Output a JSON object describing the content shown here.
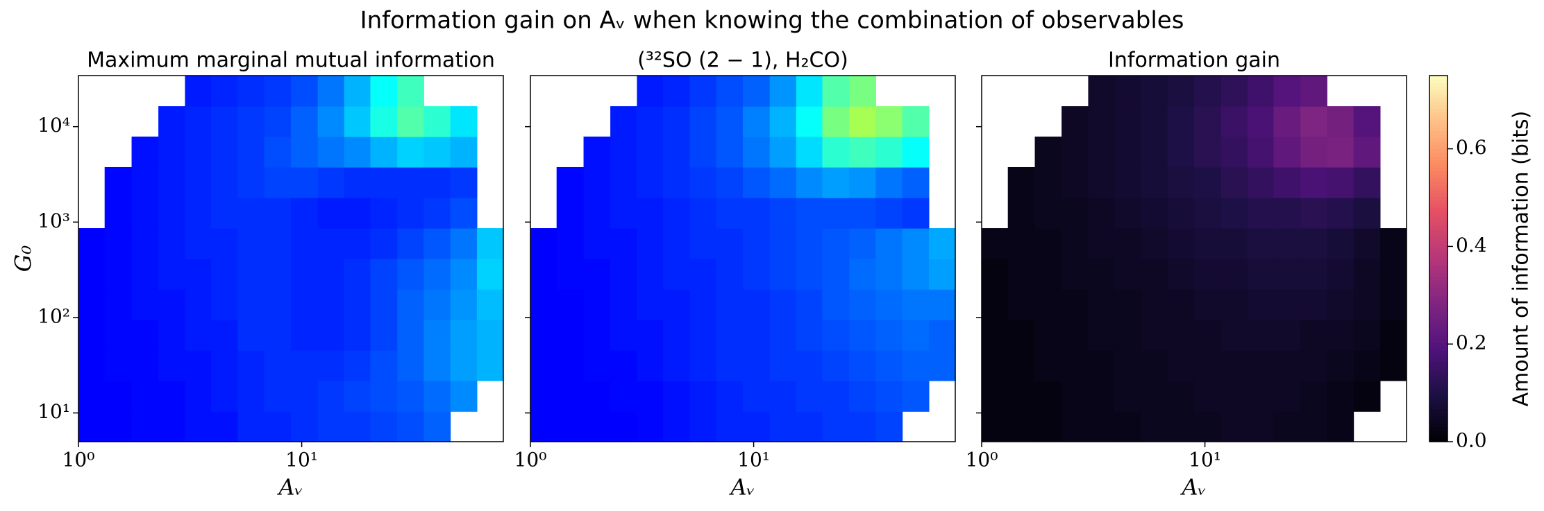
{
  "title": "Information gain on Aᵥ when knowing the combination of observables",
  "chart_data": [
    {
      "type": "heatmap",
      "title": "Maximum marginal mutual information",
      "xlabel": "Aᵥ",
      "ylabel": "G₀",
      "xscale": "log",
      "yscale": "log",
      "xlim": [
        1,
        80
      ],
      "ylim": [
        5,
        34300
      ],
      "xticks": [
        {
          "value": 1,
          "label": "10⁰"
        },
        {
          "value": 10,
          "label": "10¹"
        }
      ],
      "yticks": [
        {
          "value": 10,
          "label": "10¹"
        },
        {
          "value": 100,
          "label": "10²"
        },
        {
          "value": 1000,
          "label": "10³"
        },
        {
          "value": 10000,
          "label": "10⁴"
        }
      ],
      "show_ytick_labels": true,
      "colormap": "jet",
      "clim": [
        0,
        1
      ],
      "xbins": [
        1,
        1.31,
        1.73,
        2.28,
        3.0,
        3.93,
        5.17,
        6.8,
        8.94,
        11.8,
        15.5,
        20.3,
        26.8,
        35.2,
        46.3,
        60.9,
        80
      ],
      "ybins": [
        5,
        10.4,
        21.8,
        45.5,
        95,
        198,
        414,
        864,
        1800,
        3770,
        7870,
        16400,
        34300
      ],
      "z": [
        [
          0.12,
          0.12,
          0.13,
          0.13,
          0.14,
          0.14,
          0.16,
          0.16,
          0.17,
          0.18,
          0.18,
          0.19,
          0.2,
          0.22,
          null,
          null
        ],
        [
          0.12,
          0.12,
          0.13,
          0.13,
          0.14,
          0.15,
          0.16,
          0.17,
          0.17,
          0.18,
          0.19,
          0.2,
          0.21,
          0.23,
          0.26,
          null
        ],
        [
          0.12,
          0.13,
          0.13,
          0.14,
          0.14,
          0.15,
          0.16,
          0.17,
          0.17,
          0.17,
          0.18,
          0.2,
          0.22,
          0.25,
          0.28,
          0.3
        ],
        [
          0.12,
          0.13,
          0.13,
          0.14,
          0.15,
          0.15,
          0.17,
          0.17,
          0.16,
          0.16,
          0.17,
          0.19,
          0.22,
          0.25,
          0.28,
          0.3
        ],
        [
          0.12,
          0.13,
          0.14,
          0.14,
          0.15,
          0.16,
          0.17,
          0.17,
          0.16,
          0.16,
          0.17,
          0.19,
          0.22,
          0.24,
          0.27,
          0.31
        ],
        [
          0.12,
          0.13,
          0.14,
          0.15,
          0.15,
          0.16,
          0.17,
          0.17,
          0.16,
          0.16,
          0.17,
          0.19,
          0.21,
          0.23,
          0.26,
          0.33
        ],
        [
          0.12,
          0.13,
          0.14,
          0.15,
          0.16,
          0.16,
          0.17,
          0.17,
          0.16,
          0.16,
          0.16,
          0.17,
          0.19,
          0.21,
          0.24,
          0.32
        ],
        [
          null,
          0.13,
          0.14,
          0.15,
          0.16,
          0.17,
          0.17,
          0.17,
          0.16,
          0.15,
          0.15,
          0.16,
          0.17,
          0.18,
          0.2,
          null
        ],
        [
          null,
          0.13,
          0.14,
          0.15,
          0.16,
          0.17,
          0.18,
          0.19,
          0.19,
          0.18,
          0.17,
          0.17,
          0.17,
          0.17,
          0.18,
          null
        ],
        [
          null,
          null,
          0.14,
          0.15,
          0.16,
          0.17,
          0.18,
          0.2,
          0.22,
          0.24,
          0.26,
          0.3,
          0.33,
          0.32,
          0.3,
          null
        ],
        [
          null,
          null,
          null,
          0.15,
          0.16,
          0.17,
          0.18,
          0.19,
          0.22,
          0.26,
          0.32,
          0.4,
          0.46,
          0.42,
          0.35,
          null
        ],
        [
          null,
          null,
          null,
          null,
          0.15,
          0.16,
          0.17,
          0.18,
          0.2,
          0.24,
          0.3,
          0.38,
          0.44,
          null,
          null,
          null
        ]
      ]
    },
    {
      "type": "heatmap",
      "title": "(³²SO (2 − 1), H₂CO)",
      "xlabel": "Aᵥ",
      "xscale": "log",
      "yscale": "log",
      "xlim": [
        1,
        80
      ],
      "ylim": [
        5,
        34300
      ],
      "xticks": [
        {
          "value": 1,
          "label": "10⁰"
        },
        {
          "value": 10,
          "label": "10¹"
        }
      ],
      "yticks": [
        10,
        100,
        1000,
        10000
      ],
      "show_ytick_labels": false,
      "colormap": "jet",
      "clim": [
        0,
        1
      ],
      "xbins": [
        1,
        1.31,
        1.73,
        2.28,
        3.0,
        3.93,
        5.17,
        6.8,
        8.94,
        11.8,
        15.5,
        20.3,
        26.8,
        35.2,
        46.3,
        60.9,
        80
      ],
      "ybins": [
        5,
        10.4,
        21.8,
        45.5,
        95,
        198,
        414,
        864,
        1800,
        3770,
        7870,
        16400,
        34300
      ],
      "z": [
        [
          0.11,
          0.11,
          0.12,
          0.12,
          0.13,
          0.14,
          0.15,
          0.16,
          0.16,
          0.17,
          0.17,
          0.18,
          0.18,
          0.19,
          null,
          null
        ],
        [
          0.11,
          0.12,
          0.12,
          0.13,
          0.13,
          0.14,
          0.15,
          0.16,
          0.17,
          0.17,
          0.18,
          0.18,
          0.19,
          0.2,
          0.21,
          null
        ],
        [
          0.11,
          0.12,
          0.13,
          0.13,
          0.14,
          0.15,
          0.16,
          0.17,
          0.17,
          0.18,
          0.18,
          0.19,
          0.2,
          0.21,
          0.22,
          0.22
        ],
        [
          0.12,
          0.12,
          0.13,
          0.14,
          0.14,
          0.15,
          0.16,
          0.17,
          0.17,
          0.18,
          0.19,
          0.2,
          0.21,
          0.22,
          0.23,
          0.22
        ],
        [
          0.12,
          0.12,
          0.13,
          0.14,
          0.15,
          0.15,
          0.16,
          0.17,
          0.17,
          0.18,
          0.19,
          0.21,
          0.22,
          0.23,
          0.24,
          0.24
        ],
        [
          0.12,
          0.13,
          0.13,
          0.14,
          0.15,
          0.16,
          0.16,
          0.17,
          0.18,
          0.19,
          0.2,
          0.21,
          0.23,
          0.24,
          0.26,
          0.28
        ],
        [
          0.12,
          0.13,
          0.14,
          0.14,
          0.15,
          0.16,
          0.17,
          0.17,
          0.18,
          0.19,
          0.2,
          0.21,
          0.22,
          0.24,
          0.26,
          0.29
        ],
        [
          null,
          0.13,
          0.14,
          0.15,
          0.15,
          0.16,
          0.17,
          0.18,
          0.18,
          0.19,
          0.2,
          0.2,
          0.2,
          0.19,
          0.18,
          null
        ],
        [
          null,
          0.13,
          0.14,
          0.15,
          0.16,
          0.17,
          0.18,
          0.19,
          0.21,
          0.23,
          0.26,
          0.28,
          0.27,
          0.24,
          0.22,
          null
        ],
        [
          null,
          null,
          0.14,
          0.15,
          0.16,
          0.17,
          0.19,
          0.21,
          0.24,
          0.28,
          0.34,
          0.42,
          0.44,
          0.42,
          0.38,
          null
        ],
        [
          null,
          null,
          null,
          0.15,
          0.16,
          0.17,
          0.19,
          0.21,
          0.25,
          0.3,
          0.38,
          0.5,
          0.55,
          0.52,
          0.46,
          null
        ],
        [
          null,
          null,
          null,
          null,
          0.15,
          0.16,
          0.18,
          0.2,
          0.22,
          0.27,
          0.35,
          0.46,
          0.5,
          null,
          null,
          null
        ]
      ]
    },
    {
      "type": "heatmap",
      "title": "Information gain",
      "xlabel": "Aᵥ",
      "xscale": "log",
      "yscale": "log",
      "xlim": [
        1,
        80
      ],
      "ylim": [
        5,
        34300
      ],
      "xticks": [
        {
          "value": 1,
          "label": "10⁰"
        },
        {
          "value": 10,
          "label": "10¹"
        }
      ],
      "yticks": [
        10,
        100,
        1000,
        10000
      ],
      "show_ytick_labels": false,
      "colormap": "magma",
      "clim": [
        0,
        0.75
      ],
      "colorbar": {
        "label": "Amount of information (bits)",
        "ticks": [
          {
            "value": 0,
            "label": "0.0"
          },
          0.2,
          0.4,
          0.6
        ]
      },
      "xbins": [
        1,
        1.31,
        1.73,
        2.28,
        3.0,
        3.93,
        5.17,
        6.8,
        8.94,
        11.8,
        15.5,
        20.3,
        26.8,
        35.2,
        46.3,
        60.9,
        80
      ],
      "ybins": [
        5,
        10.4,
        21.8,
        45.5,
        95,
        198,
        414,
        864,
        1800,
        3770,
        7870,
        16400,
        34300
      ],
      "z": [
        [
          0.02,
          0.02,
          0.02,
          0.03,
          0.03,
          0.03,
          0.04,
          0.04,
          0.04,
          0.05,
          0.05,
          0.04,
          0.04,
          0.03,
          null,
          null
        ],
        [
          0.02,
          0.02,
          0.02,
          0.03,
          0.03,
          0.04,
          0.04,
          0.04,
          0.05,
          0.05,
          0.05,
          0.05,
          0.04,
          0.03,
          0.02,
          null
        ],
        [
          0.02,
          0.02,
          0.03,
          0.03,
          0.03,
          0.04,
          0.04,
          0.05,
          0.05,
          0.05,
          0.05,
          0.05,
          0.05,
          0.04,
          0.03,
          0.02
        ],
        [
          0.02,
          0.02,
          0.03,
          0.03,
          0.04,
          0.04,
          0.05,
          0.05,
          0.05,
          0.06,
          0.06,
          0.06,
          0.05,
          0.05,
          0.04,
          0.02
        ],
        [
          0.02,
          0.03,
          0.03,
          0.03,
          0.04,
          0.04,
          0.05,
          0.05,
          0.06,
          0.06,
          0.07,
          0.07,
          0.07,
          0.06,
          0.05,
          0.03
        ],
        [
          0.02,
          0.03,
          0.03,
          0.04,
          0.04,
          0.05,
          0.05,
          0.06,
          0.07,
          0.07,
          0.08,
          0.08,
          0.08,
          0.07,
          0.05,
          0.03
        ],
        [
          0.03,
          0.03,
          0.03,
          0.04,
          0.05,
          0.05,
          0.06,
          0.07,
          0.08,
          0.08,
          0.09,
          0.09,
          0.09,
          0.08,
          0.06,
          0.03
        ],
        [
          null,
          0.03,
          0.04,
          0.04,
          0.05,
          0.06,
          0.07,
          0.08,
          0.09,
          0.1,
          0.11,
          0.11,
          0.12,
          0.11,
          0.09,
          null
        ],
        [
          null,
          0.03,
          0.04,
          0.05,
          0.06,
          0.07,
          0.08,
          0.09,
          0.1,
          0.12,
          0.14,
          0.16,
          0.18,
          0.17,
          0.14,
          null
        ],
        [
          null,
          null,
          0.04,
          0.05,
          0.06,
          0.07,
          0.08,
          0.1,
          0.12,
          0.14,
          0.17,
          0.22,
          0.26,
          0.27,
          0.22,
          null
        ],
        [
          null,
          null,
          null,
          0.05,
          0.06,
          0.07,
          0.08,
          0.1,
          0.12,
          0.15,
          0.18,
          0.24,
          0.28,
          0.26,
          0.2,
          null
        ],
        [
          null,
          null,
          null,
          null,
          0.06,
          0.07,
          0.08,
          0.09,
          0.11,
          0.13,
          0.16,
          0.2,
          0.22,
          null,
          null,
          null
        ]
      ]
    }
  ]
}
